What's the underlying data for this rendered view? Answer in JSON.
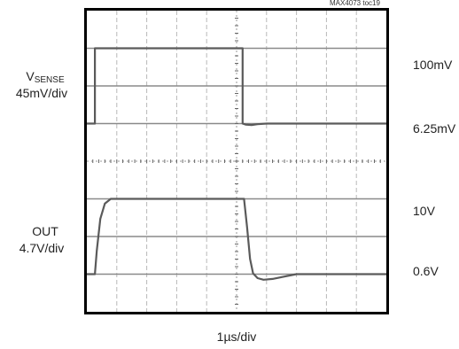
{
  "figure_id": "MAX4073 toc19",
  "chart_data": {
    "type": "line",
    "time_scale": "1µs/div",
    "grid": {
      "x_divisions": 10,
      "y_divisions": 8,
      "shown": true
    },
    "channels": [
      {
        "name_main": "V",
        "name_sub": "SENSE",
        "scale": "45mV/div",
        "upper_ref": "100mV",
        "lower_ref": "6.25mV",
        "x": [
          0,
          0.27,
          0.27,
          5.2,
          5.2,
          5.3,
          5.5,
          5.7,
          6.0,
          10
        ],
        "y": [
          6.25,
          6.25,
          100,
          100,
          6.25,
          5.0,
          4.5,
          5.5,
          6.25,
          6.25
        ]
      },
      {
        "name": "OUT",
        "scale": "4.7V/div",
        "upper_ref": "10V",
        "lower_ref": "0.6V",
        "x": [
          0,
          0.27,
          0.33,
          0.45,
          0.6,
          0.8,
          1.1,
          1.5,
          5.25,
          5.35,
          5.45,
          5.55,
          5.7,
          5.9,
          6.2,
          6.6,
          7.0,
          10
        ],
        "y": [
          0.6,
          0.6,
          3.5,
          7.5,
          9.4,
          10.0,
          10.0,
          10.0,
          10.0,
          6.5,
          2.5,
          0.7,
          0.1,
          -0.1,
          0.0,
          0.3,
          0.6,
          0.6
        ]
      }
    ]
  }
}
